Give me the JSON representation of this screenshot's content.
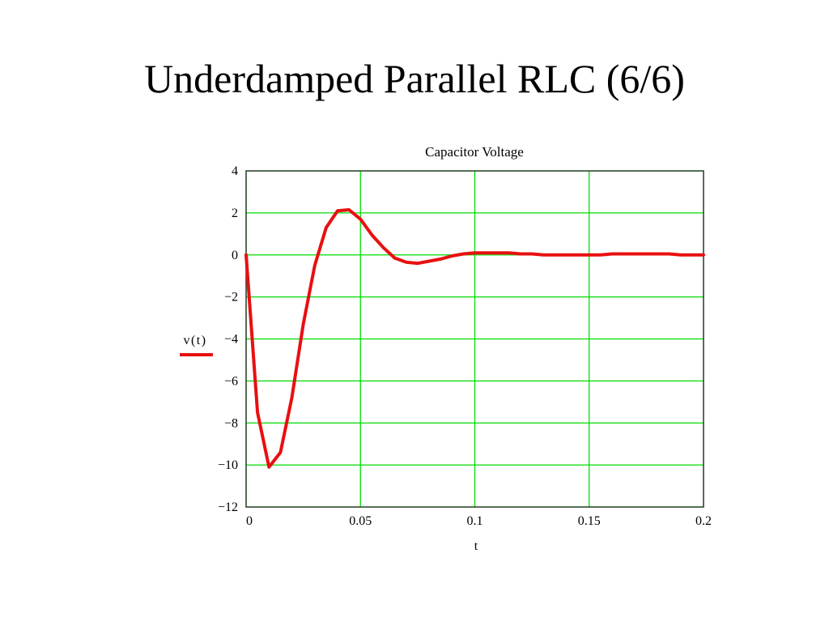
{
  "slide": {
    "title": "Underdamped Parallel RLC (6/6)"
  },
  "chart_data": {
    "type": "line",
    "title": "Capacitor Voltage",
    "xlabel": "t",
    "ylabel": "",
    "xlim": [
      0,
      0.2
    ],
    "ylim": [
      -12,
      4
    ],
    "xticks": [
      0,
      0.05,
      0.1,
      0.15,
      0.2
    ],
    "xtick_labels": [
      "0",
      "0.05",
      "0.1",
      "0.15",
      "0.2"
    ],
    "yticks": [
      4,
      2,
      0,
      -2,
      -4,
      -6,
      -8,
      -10,
      -12
    ],
    "ytick_labels": [
      "4",
      "2",
      "0",
      "−2",
      "−4",
      "−6",
      "−8",
      "−10",
      "−12"
    ],
    "grid": true,
    "grid_color": "#00dd00",
    "legend_position": "left",
    "series": [
      {
        "name": "v(t)",
        "color": "#e81010",
        "x": [
          0,
          0.005,
          0.01,
          0.015,
          0.02,
          0.025,
          0.03,
          0.035,
          0.04,
          0.045,
          0.05,
          0.055,
          0.06,
          0.065,
          0.07,
          0.075,
          0.08,
          0.085,
          0.09,
          0.095,
          0.1,
          0.105,
          0.11,
          0.115,
          0.12,
          0.125,
          0.13,
          0.135,
          0.14,
          0.145,
          0.15,
          0.155,
          0.16,
          0.165,
          0.17,
          0.175,
          0.18,
          0.185,
          0.19,
          0.195,
          0.2
        ],
        "y": [
          0,
          -7.5,
          -10.1,
          -9.4,
          -6.8,
          -3.3,
          -0.5,
          1.3,
          2.1,
          2.15,
          1.7,
          0.95,
          0.35,
          -0.15,
          -0.35,
          -0.4,
          -0.3,
          -0.2,
          -0.05,
          0.05,
          0.1,
          0.1,
          0.1,
          0.1,
          0.05,
          0.05,
          0,
          0,
          0,
          0,
          0,
          0,
          0.05,
          0.05,
          0.05,
          0.05,
          0.05,
          0.05,
          0,
          0,
          0
        ]
      }
    ]
  }
}
